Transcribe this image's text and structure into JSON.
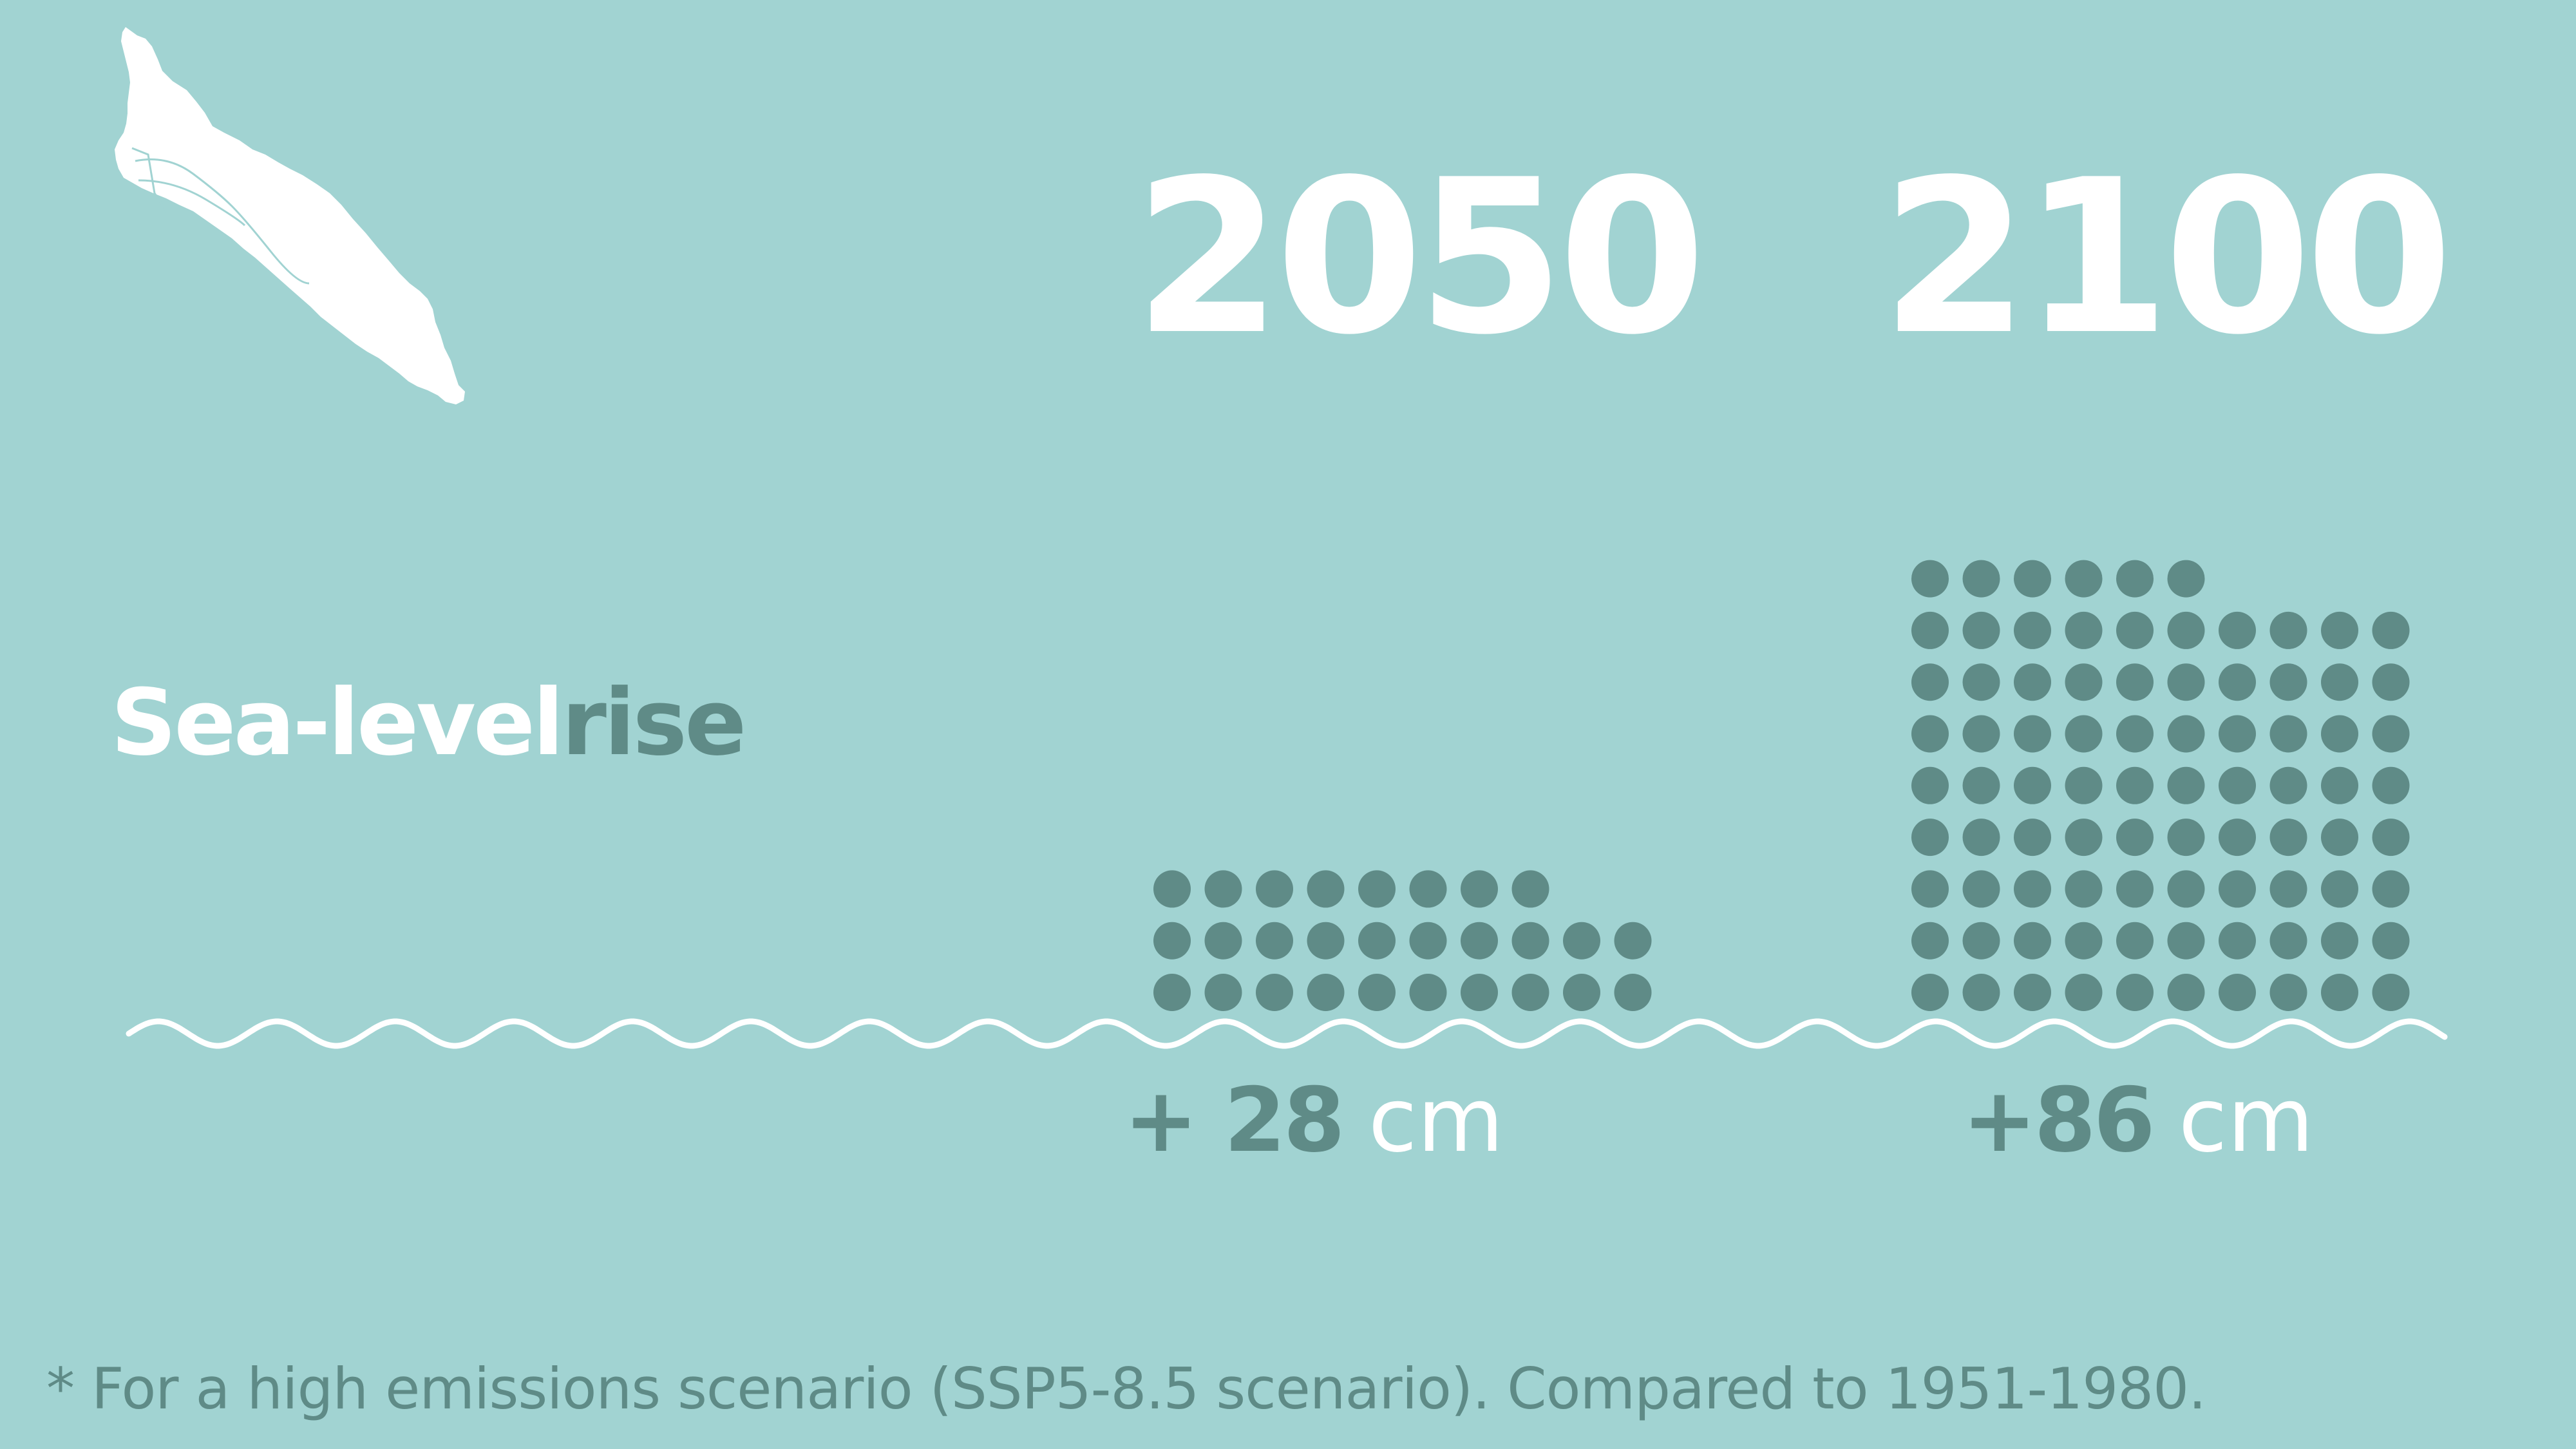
{
  "title": {
    "light_part": "Sea-level",
    "dark_part": "rise"
  },
  "footnote": "* For a high emissions scenario (SSP5-8.5 scenario). Compared to 1951-1980.",
  "colors": {
    "background": "#a1d3d2",
    "dot": "#5f8b87",
    "white": "#ffffff"
  },
  "icons": {
    "map": "island-map-icon",
    "wave": "wave-line-icon"
  },
  "chart_data": {
    "type": "bar",
    "categories": [
      "2050",
      "2100"
    ],
    "series": [
      {
        "values": [
          28,
          86
        ]
      }
    ],
    "bar_labels": [
      {
        "value": "+ 28",
        "unit": "cm"
      },
      {
        "value": "+86",
        "unit": "cm"
      }
    ],
    "dot_unit_cm": 1
  }
}
